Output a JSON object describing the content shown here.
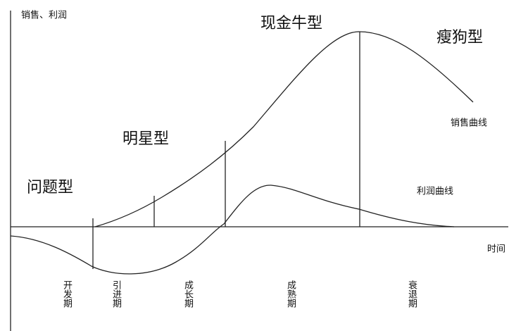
{
  "axes": {
    "y_label": "销售、利润",
    "x_label": "时间"
  },
  "quadrants": {
    "question": "问题型",
    "star": "明星型",
    "cash_cow": "现金牛型",
    "dog": "瘦狗型"
  },
  "curves": {
    "sales": "销售曲线",
    "profit": "利润曲线"
  },
  "stages": [
    "开发期",
    "引进期",
    "成长期",
    "成熟期",
    "衰退期"
  ]
}
